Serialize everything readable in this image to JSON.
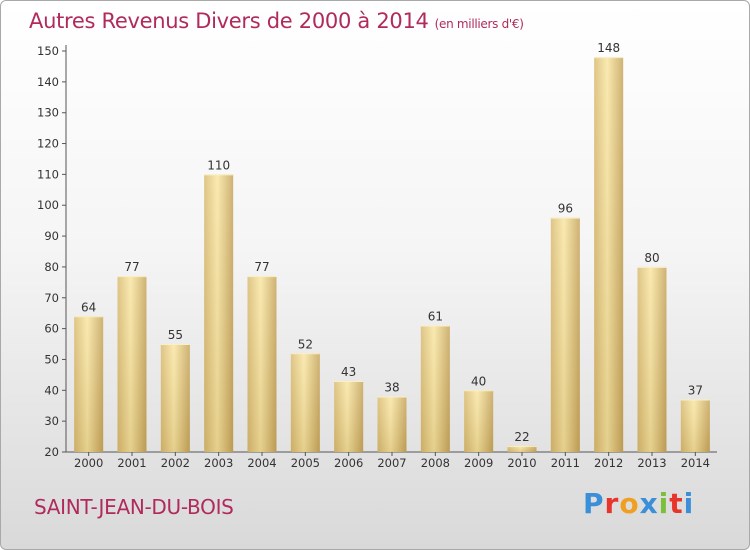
{
  "title": "Autres Revenus Divers de 2000 à 2014",
  "title_unit": "(en milliers d'€)",
  "commune": "SAINT-JEAN-DU-BOIS",
  "brand": {
    "letters": [
      "P",
      "r",
      "o",
      "x",
      "i",
      "t",
      "i"
    ],
    "colors": [
      "#3a8fd8",
      "#e8342a",
      "#f0a020",
      "#3a8fd8",
      "#7bbf3a",
      "#e8342a",
      "#3a8fd8"
    ]
  },
  "colors": {
    "accent": "#b02a5b",
    "bar_light": "#f7e29c",
    "bar_dark": "#c9a85e"
  },
  "chart_data": {
    "type": "bar",
    "categories": [
      "2000",
      "2001",
      "2002",
      "2003",
      "2004",
      "2005",
      "2006",
      "2007",
      "2008",
      "2009",
      "2010",
      "2011",
      "2012",
      "2013",
      "2014"
    ],
    "values": [
      64,
      77,
      55,
      110,
      77,
      52,
      43,
      38,
      61,
      40,
      22,
      96,
      148,
      80,
      37
    ],
    "ylim": [
      20,
      150
    ],
    "yticks": [
      20,
      30,
      40,
      50,
      60,
      70,
      80,
      90,
      100,
      110,
      120,
      130,
      140,
      150
    ],
    "grid": false,
    "xlabel": "",
    "ylabel": ""
  }
}
